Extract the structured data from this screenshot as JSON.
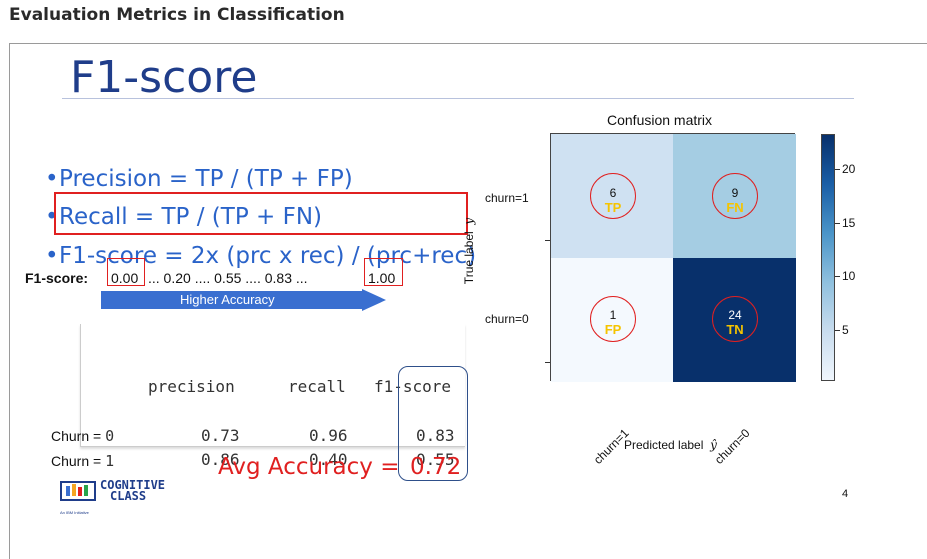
{
  "page": {
    "title": "Evaluation Metrics in Classification"
  },
  "slide": {
    "heading": "F1-score",
    "bullets": [
      "Precision = TP / (TP + FP)",
      "Recall =  TP / (TP + FN)",
      "F1-score = 2x (prc x rec) / (prc+rec)"
    ],
    "bullet_symbol": "•",
    "f1_scale": {
      "label": "F1-score",
      "colon": ":",
      "min": "0.00",
      "mid": "... 0.20   ....  0.55 .... 0.83 ...",
      "max": "1.00",
      "arrow_label": "Higher Accuracy"
    },
    "report": {
      "headers": [
        "precision",
        "recall",
        "f1-score"
      ],
      "rows": [
        {
          "label": "Churn = ",
          "class": "0",
          "precision": "0.73",
          "recall": "0.96",
          "f1": "0.83"
        },
        {
          "label": "Churn = ",
          "class": "1",
          "precision": "0.86",
          "recall": "0.40",
          "f1": "0.55"
        }
      ]
    },
    "avg": {
      "label": "Avg Accuracy =",
      "value": "0.72"
    },
    "logo": {
      "line1": "COGNITIVE",
      "line2": "CLASS",
      "sub": "An IBM Initiative"
    },
    "page_number": "4"
  },
  "confusion_matrix": {
    "title": "Confusion matrix",
    "y_ticks": [
      "churn=1",
      "churn=0"
    ],
    "x_ticks": [
      "churn=1",
      "churn=0"
    ],
    "ylabel": "True label",
    "ylabel_symbol": "y",
    "xlabel": "Predicted label",
    "xlabel_symbol": "ŷ",
    "cells": [
      {
        "value": "6",
        "tag": "TP",
        "color": "#cfe1f2"
      },
      {
        "value": "9",
        "tag": "FN",
        "color": "#a5cde3"
      },
      {
        "value": "1",
        "tag": "FP",
        "color": "#f4f9fe"
      },
      {
        "value": "24",
        "tag": "TN",
        "color": "#08306b"
      }
    ],
    "colorbar_ticks": [
      "20",
      "15",
      "10",
      "5"
    ]
  },
  "chart_data": {
    "type": "heatmap",
    "title": "Confusion matrix",
    "xlabel": "Predicted label ŷ",
    "ylabel": "True label y",
    "x_categories": [
      "churn=1",
      "churn=0"
    ],
    "y_categories": [
      "churn=1",
      "churn=0"
    ],
    "values": [
      [
        6,
        9
      ],
      [
        1,
        24
      ]
    ],
    "annotations": [
      [
        "TP",
        "FN"
      ],
      [
        "FP",
        "TN"
      ]
    ],
    "colorbar_range": [
      1,
      24
    ],
    "colorbar_ticks": [
      5,
      10,
      15,
      20
    ],
    "colormap": "Blues"
  }
}
